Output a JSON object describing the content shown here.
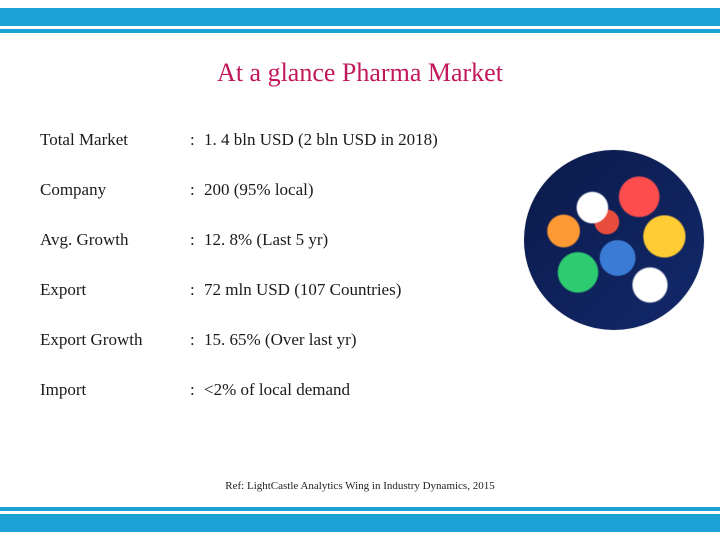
{
  "colors": {
    "band": "#1ba3d6",
    "title": "#c2185b",
    "text": "#1a1a1a"
  },
  "title": "At a glance Pharma Market",
  "rows": [
    {
      "label": "Total Market",
      "value": "1. 4 bln USD (2 bln USD in 2018)"
    },
    {
      "label": "Company",
      "value": "200 (95% local)"
    },
    {
      "label": "Avg. Growth",
      "value": "12. 8% (Last 5 yr)"
    },
    {
      "label": "Export",
      "value": "72 mln USD (107 Countries)"
    },
    {
      "label": "Export Growth",
      "value": "15. 65% (Over last yr)"
    },
    {
      "label": "Import",
      "value": "<2% of local demand"
    }
  ],
  "reference": "Ref: LightCastle Analytics Wing in Industry Dynamics, 2015"
}
